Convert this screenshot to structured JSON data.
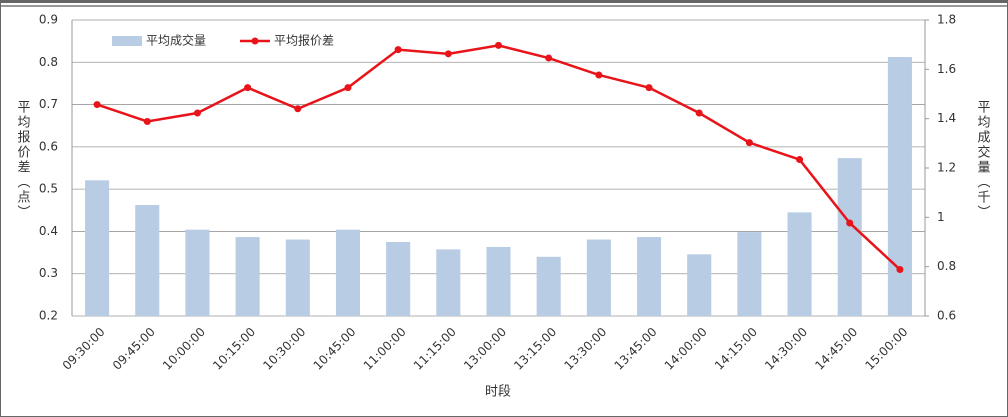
{
  "chart_data": {
    "type": "bar_line",
    "categories": [
      "09:30:00",
      "09:45:00",
      "10:00:00",
      "10:15:00",
      "10:30:00",
      "10:45:00",
      "11:00:00",
      "11:15:00",
      "13:00:00",
      "13:15:00",
      "13:30:00",
      "13:45:00",
      "14:00:00",
      "14:15:00",
      "14:30:00",
      "14:45:00",
      "15:00:00"
    ],
    "x_label": "时段",
    "y_label": "平均报价差（点）",
    "y2_label": "平均成交量（千）",
    "series": [
      {
        "name": "平均成交量",
        "type": "bar",
        "axis": "y2",
        "color": "#b8cce4",
        "values": [
          1.15,
          1.05,
          0.95,
          0.92,
          0.91,
          0.95,
          0.9,
          0.87,
          0.88,
          0.84,
          0.91,
          0.92,
          0.85,
          0.94,
          1.02,
          1.24,
          1.65
        ]
      },
      {
        "name": "平均报价差",
        "type": "line",
        "color": "#e8141a",
        "values": [
          0.7,
          0.66,
          0.68,
          0.74,
          0.69,
          0.74,
          0.83,
          0.82,
          0.84,
          0.81,
          0.77,
          0.74,
          0.68,
          0.61,
          0.57,
          0.42,
          0.31
        ]
      }
    ],
    "ylim": [
      0.2,
      0.9
    ],
    "yticks": [
      0.2,
      0.3,
      0.4,
      0.5,
      0.6,
      0.7,
      0.8,
      0.9
    ],
    "y2lim": [
      0.6,
      1.8
    ],
    "y2ticks": [
      0.6,
      0.8,
      1,
      1.2,
      1.4,
      1.6,
      1.8
    ],
    "grid": true,
    "legend": "top-left"
  }
}
